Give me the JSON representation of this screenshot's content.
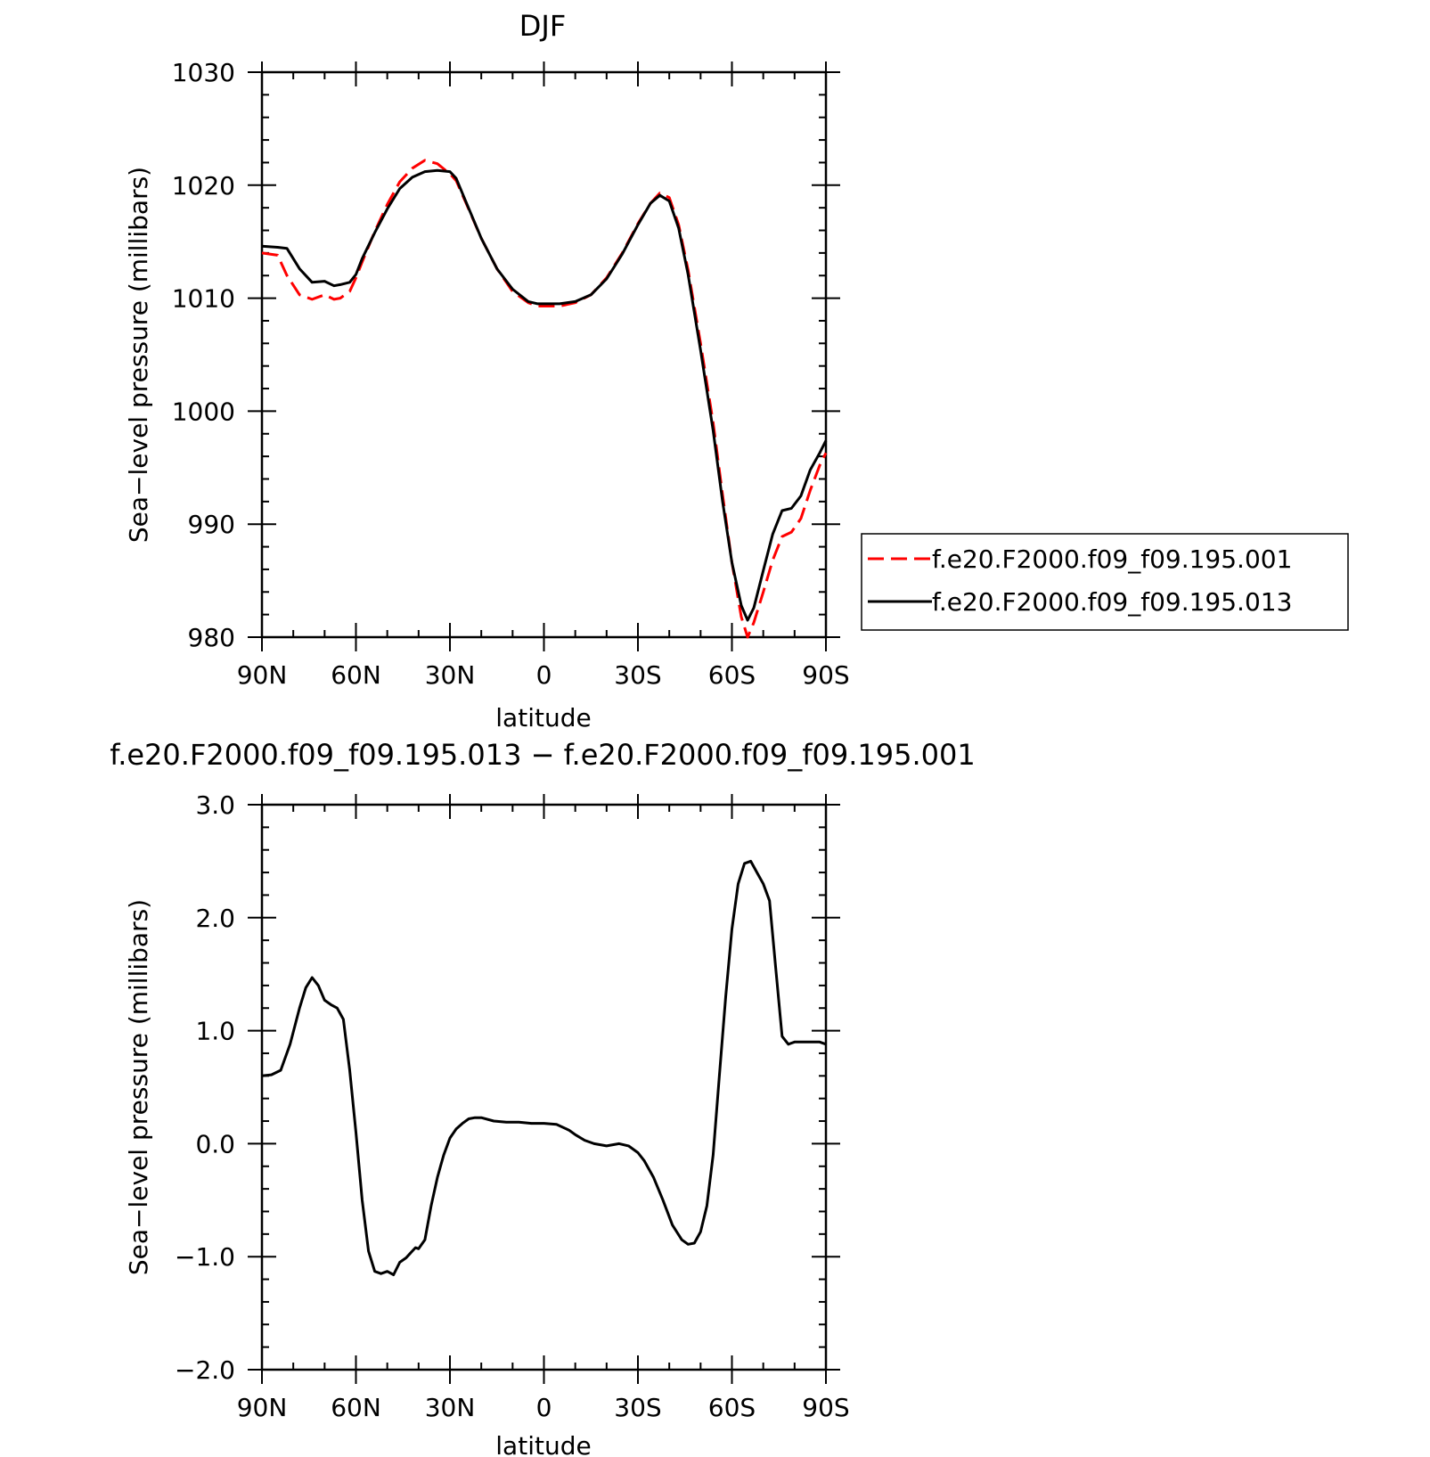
{
  "chart_data": [
    {
      "type": "line",
      "title": "DJF",
      "xlabel": "latitude",
      "ylabel": "Sea−level pressure (millibars)",
      "xlim": [
        90,
        -90
      ],
      "ylim": [
        980,
        1030
      ],
      "x_ticks": [
        90,
        60,
        30,
        0,
        -30,
        -60,
        -90
      ],
      "x_tick_labels": [
        "90N",
        "60N",
        "30N",
        "0",
        "30S",
        "60S",
        "90S"
      ],
      "y_ticks": [
        980,
        990,
        1000,
        1010,
        1020,
        1030
      ],
      "y_tick_labels": [
        "980",
        "990",
        "1000",
        "1010",
        "1020",
        "1030"
      ],
      "legend_position": "right",
      "series": [
        {
          "name": "f.e20.F2000.f09_f09.195.001",
          "color": "#ff0000",
          "dash": "dashed",
          "x": [
            90,
            85,
            82,
            78,
            74,
            70,
            67,
            65,
            62,
            60,
            58,
            54,
            50,
            46,
            42,
            38,
            34,
            30,
            28,
            25,
            20,
            15,
            10,
            5,
            2,
            0,
            -5,
            -10,
            -15,
            -20,
            -25,
            -30,
            -34,
            -37,
            -40,
            -43,
            -46,
            -50,
            -54,
            -57,
            -60,
            -63,
            -65,
            -67,
            -70,
            -73,
            -76,
            -79,
            -82,
            -85,
            -88,
            -90
          ],
          "y": [
            1014.0,
            1013.8,
            1012.0,
            1010.3,
            1009.9,
            1010.3,
            1009.9,
            1010.0,
            1010.6,
            1011.8,
            1013.2,
            1015.9,
            1018.3,
            1020.3,
            1021.5,
            1022.2,
            1021.9,
            1021.0,
            1020.4,
            1018.5,
            1015.3,
            1012.6,
            1010.6,
            1009.6,
            1009.3,
            1009.3,
            1009.3,
            1009.6,
            1010.3,
            1011.8,
            1014.0,
            1016.6,
            1018.4,
            1019.3,
            1018.9,
            1016.5,
            1012.5,
            1006.0,
            999.0,
            992.6,
            986.6,
            981.8,
            980.0,
            981.3,
            984.0,
            986.8,
            988.9,
            989.3,
            990.5,
            993.0,
            995.2,
            996.3
          ]
        },
        {
          "name": "f.e20.F2000.f09_f09.195.013",
          "color": "#000000",
          "dash": "solid",
          "x": [
            90,
            85,
            82,
            78,
            74,
            70,
            67,
            65,
            62,
            60,
            58,
            54,
            50,
            46,
            42,
            38,
            34,
            30,
            28,
            25,
            20,
            15,
            10,
            5,
            2,
            0,
            -5,
            -10,
            -15,
            -20,
            -25,
            -30,
            -34,
            -37,
            -40,
            -43,
            -46,
            -50,
            -54,
            -57,
            -60,
            -63,
            -65,
            -67,
            -70,
            -73,
            -76,
            -79,
            -82,
            -85,
            -88,
            -90
          ],
          "y": [
            1014.6,
            1014.5,
            1014.4,
            1012.6,
            1011.4,
            1011.5,
            1011.1,
            1011.2,
            1011.4,
            1012.1,
            1013.5,
            1015.8,
            1017.9,
            1019.7,
            1020.7,
            1021.2,
            1021.3,
            1021.2,
            1020.6,
            1018.6,
            1015.3,
            1012.6,
            1010.8,
            1009.7,
            1009.5,
            1009.5,
            1009.5,
            1009.7,
            1010.3,
            1011.7,
            1013.9,
            1016.5,
            1018.4,
            1019.1,
            1018.6,
            1016.2,
            1012.1,
            1005.4,
            998.3,
            992.0,
            986.6,
            982.8,
            981.5,
            982.6,
            985.9,
            989.1,
            991.2,
            991.4,
            992.5,
            994.8,
            996.3,
            997.4
          ]
        }
      ]
    },
    {
      "type": "line",
      "title": "f.e20.F2000.f09_f09.195.013 − f.e20.F2000.f09_f09.195.001",
      "xlabel": "latitude",
      "ylabel": "Sea−level pressure (millibars)",
      "xlim": [
        90,
        -90
      ],
      "ylim": [
        -2,
        3
      ],
      "x_ticks": [
        90,
        60,
        30,
        0,
        -30,
        -60,
        -90
      ],
      "x_tick_labels": [
        "90N",
        "60N",
        "30N",
        "0",
        "30S",
        "60S",
        "90S"
      ],
      "y_ticks": [
        -2,
        -1,
        0,
        1,
        2,
        3
      ],
      "y_tick_labels": [
        "−2.0",
        "−1.0",
        "0.0",
        "1.0",
        "2.0",
        "3.0"
      ],
      "series": [
        {
          "color": "#000000",
          "dash": "solid",
          "x": [
            90,
            87,
            84,
            81,
            78,
            76,
            74,
            72,
            70,
            68,
            66,
            64,
            62,
            60,
            58,
            56,
            54,
            52,
            50,
            48,
            46,
            44,
            43,
            42,
            41,
            40,
            38,
            36,
            34,
            33,
            32,
            30,
            28,
            26,
            24,
            22,
            20,
            16,
            12,
            8,
            4,
            0,
            -4,
            -8,
            -10,
            -13,
            -16,
            -20,
            -24,
            -27,
            -30,
            -32,
            -35,
            -38,
            -41,
            -44,
            -46,
            -48,
            -50,
            -52,
            -54,
            -56,
            -58,
            -60,
            -62,
            -64,
            -66,
            -68,
            -70,
            -72,
            -74,
            -76,
            -78,
            -80,
            -82,
            -84,
            -86,
            -88,
            -90
          ],
          "y": [
            0.6,
            0.61,
            0.65,
            0.88,
            1.2,
            1.38,
            1.47,
            1.4,
            1.27,
            1.23,
            1.2,
            1.1,
            0.65,
            0.1,
            -0.5,
            -0.95,
            -1.13,
            -1.15,
            -1.13,
            -1.16,
            -1.05,
            -1.01,
            -0.98,
            -0.95,
            -0.92,
            -0.93,
            -0.85,
            -0.55,
            -0.3,
            -0.2,
            -0.1,
            0.05,
            0.13,
            0.18,
            0.22,
            0.23,
            0.23,
            0.2,
            0.19,
            0.19,
            0.18,
            0.18,
            0.17,
            0.12,
            0.08,
            0.03,
            0.0,
            -0.02,
            0.0,
            -0.02,
            -0.08,
            -0.15,
            -0.3,
            -0.5,
            -0.72,
            -0.85,
            -0.89,
            -0.88,
            -0.78,
            -0.55,
            -0.1,
            0.6,
            1.3,
            1.9,
            2.3,
            2.48,
            2.5,
            2.4,
            2.3,
            2.15,
            1.55,
            0.95,
            0.88,
            0.9,
            0.9,
            0.9,
            0.9,
            0.9,
            0.88
          ]
        }
      ]
    }
  ],
  "legend": {
    "entries": [
      "f.e20.F2000.f09_f09.195.001",
      "f.e20.F2000.f09_f09.195.013"
    ]
  }
}
